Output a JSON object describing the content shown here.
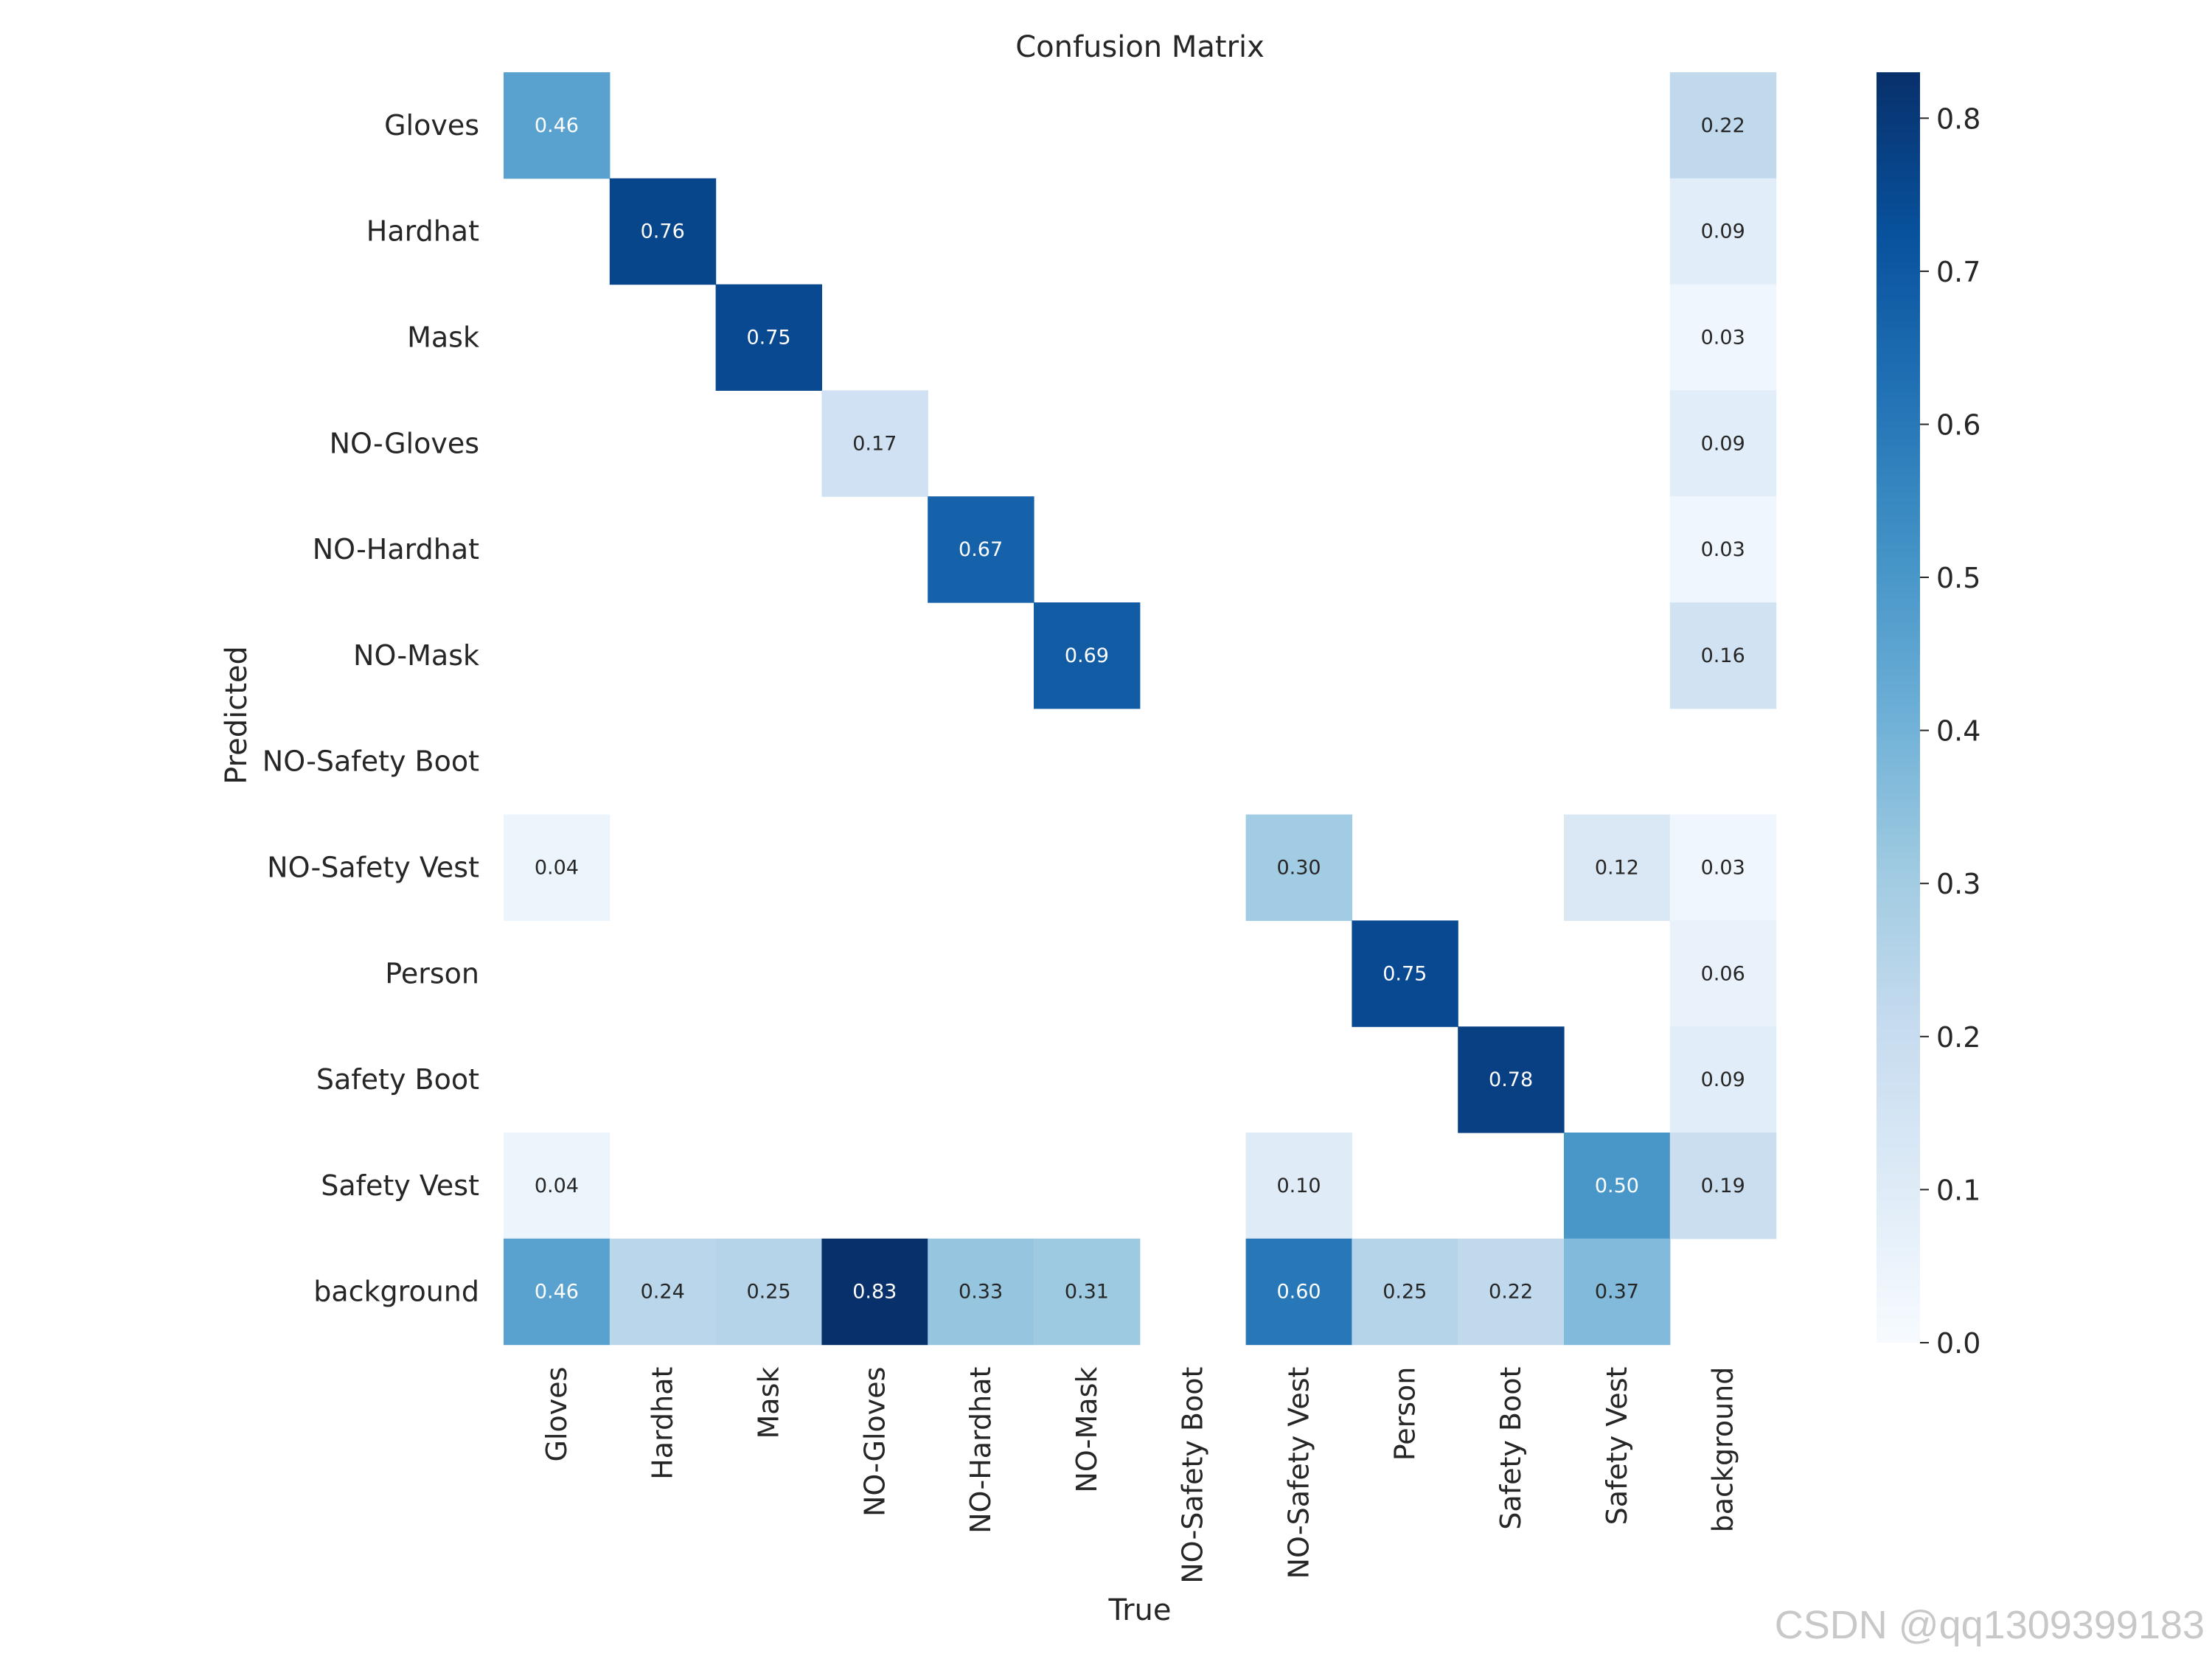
{
  "chart_data": {
    "type": "heatmap",
    "title": "Confusion Matrix",
    "xlabel": "True",
    "ylabel": "Predicted",
    "colormap": "Blues",
    "vmin": 0.0,
    "vmax": 0.83,
    "colorbar_ticks": [
      "0.0",
      "0.1",
      "0.2",
      "0.3",
      "0.4",
      "0.5",
      "0.6",
      "0.7",
      "0.8"
    ],
    "colorbar_values": [
      0.0,
      0.1,
      0.2,
      0.3,
      0.4,
      0.5,
      0.6,
      0.7,
      0.8
    ],
    "row_labels": [
      "Gloves",
      "Hardhat",
      "Mask",
      "NO-Gloves",
      "NO-Hardhat",
      "NO-Mask",
      "NO-Safety Boot",
      "NO-Safety Vest",
      "Person",
      "Safety Boot",
      "Safety Vest",
      "background"
    ],
    "col_labels": [
      "Gloves",
      "Hardhat",
      "Mask",
      "NO-Gloves",
      "NO-Hardhat",
      "NO-Mask",
      "NO-Safety Boot",
      "NO-Safety Vest",
      "Person",
      "Safety Boot",
      "Safety Vest",
      "background"
    ],
    "values": [
      [
        0.46,
        null,
        null,
        null,
        null,
        null,
        null,
        null,
        null,
        null,
        null,
        0.22
      ],
      [
        null,
        0.76,
        null,
        null,
        null,
        null,
        null,
        null,
        null,
        null,
        null,
        0.09
      ],
      [
        null,
        null,
        0.75,
        null,
        null,
        null,
        null,
        null,
        null,
        null,
        null,
        0.03
      ],
      [
        null,
        null,
        null,
        0.17,
        null,
        null,
        null,
        null,
        null,
        null,
        null,
        0.09
      ],
      [
        null,
        null,
        null,
        null,
        0.67,
        null,
        null,
        null,
        null,
        null,
        null,
        0.03
      ],
      [
        null,
        null,
        null,
        null,
        null,
        0.69,
        null,
        null,
        null,
        null,
        null,
        0.16
      ],
      [
        null,
        null,
        null,
        null,
        null,
        null,
        null,
        null,
        null,
        null,
        null,
        null
      ],
      [
        0.04,
        null,
        null,
        null,
        null,
        null,
        null,
        0.3,
        null,
        null,
        0.12,
        0.03
      ],
      [
        null,
        null,
        null,
        null,
        null,
        null,
        null,
        null,
        0.75,
        null,
        null,
        0.06
      ],
      [
        null,
        null,
        null,
        null,
        null,
        null,
        null,
        null,
        null,
        0.78,
        null,
        0.09
      ],
      [
        0.04,
        null,
        null,
        null,
        null,
        null,
        null,
        0.1,
        null,
        null,
        0.5,
        0.19
      ],
      [
        0.46,
        0.24,
        0.25,
        0.83,
        0.33,
        0.31,
        null,
        0.6,
        0.25,
        0.22,
        0.37,
        null
      ]
    ]
  },
  "watermark": "CSDN @qq1309399183"
}
